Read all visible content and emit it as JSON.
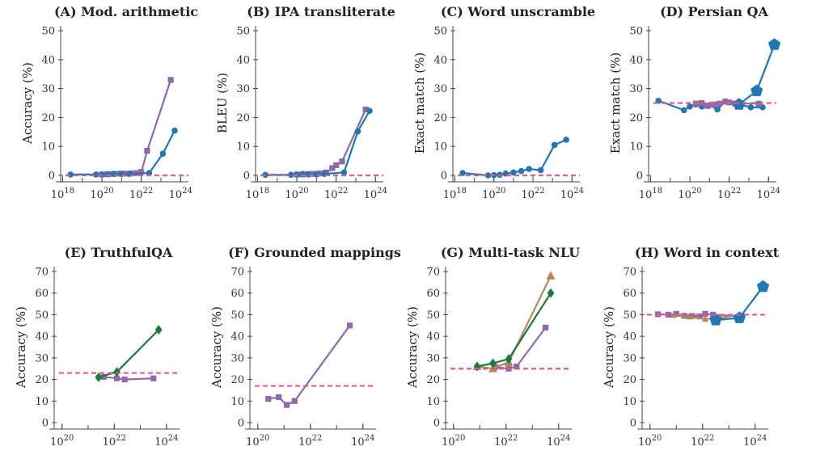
{
  "colors": {
    "blue": "#1f77b4",
    "purple": "#8e6aa8",
    "green": "#1a7a3f",
    "tan": "#b08a5a",
    "baseline": "#e05a8a"
  },
  "chart_data": [
    {
      "type": "line",
      "title": "(A) Mod. arithmetic",
      "ylabel": "Accuracy (%)",
      "xscale": "log",
      "xlim": [
        17.9,
        24.4
      ],
      "ylim": [
        0,
        50
      ],
      "xticks": [
        18,
        20,
        22,
        24
      ],
      "yticks": [
        0,
        10,
        20,
        30,
        40,
        50
      ],
      "baseline": 0,
      "series": [
        {
          "color": "purple",
          "marker": "square",
          "size": "small",
          "x": [
            20.0,
            20.3,
            20.6,
            20.9,
            21.2,
            21.5,
            21.8,
            22.0,
            22.3,
            23.5
          ],
          "y": [
            0.3,
            0.4,
            0.5,
            0.6,
            0.6,
            0.7,
            0.8,
            1.2,
            8.5,
            33.0
          ]
        },
        {
          "color": "blue",
          "marker": "circle",
          "size": "small",
          "x": [
            18.4,
            19.7,
            20.0,
            20.3,
            20.6,
            21.0,
            21.4,
            22.4,
            23.1,
            23.7
          ],
          "y": [
            0.3,
            0.3,
            0.3,
            0.4,
            0.5,
            0.5,
            0.5,
            0.8,
            7.5,
            15.5
          ]
        }
      ]
    },
    {
      "type": "line",
      "title": "(B) IPA transliterate",
      "ylabel": "BLEU (%)",
      "xscale": "log",
      "xlim": [
        17.9,
        24.4
      ],
      "ylim": [
        0,
        50
      ],
      "xticks": [
        18,
        20,
        22,
        24
      ],
      "yticks": [
        0,
        10,
        20,
        30,
        40,
        50
      ],
      "baseline": 0,
      "series": [
        {
          "color": "purple",
          "marker": "square",
          "size": "small",
          "x": [
            20.0,
            20.3,
            20.6,
            20.9,
            21.2,
            21.5,
            21.8,
            22.0,
            22.3,
            23.5
          ],
          "y": [
            0.3,
            0.3,
            0.5,
            0.5,
            0.7,
            1.0,
            2.5,
            3.5,
            4.8,
            22.8
          ]
        },
        {
          "color": "blue",
          "marker": "circle",
          "size": "small",
          "x": [
            18.4,
            19.7,
            20.0,
            20.3,
            20.6,
            21.0,
            21.4,
            22.4,
            23.1,
            23.7
          ],
          "y": [
            0.2,
            0.2,
            0.3,
            0.5,
            0.3,
            0.3,
            0.5,
            1.0,
            15.2,
            22.3
          ]
        }
      ]
    },
    {
      "type": "line",
      "title": "(C) Word unscramble",
      "ylabel": "Exact match (%)",
      "xscale": "log",
      "xlim": [
        17.9,
        24.4
      ],
      "ylim": [
        0,
        50
      ],
      "xticks": [
        18,
        20,
        22,
        24
      ],
      "yticks": [
        0,
        10,
        20,
        30,
        40,
        50
      ],
      "baseline": 0,
      "series": [
        {
          "color": "blue",
          "marker": "circle",
          "size": "small",
          "x": [
            18.4,
            19.7,
            20.0,
            20.3,
            20.6,
            21.0,
            21.4,
            21.8,
            22.4,
            23.1,
            23.7
          ],
          "y": [
            0.8,
            0.0,
            0.1,
            0.2,
            0.6,
            1.0,
            1.5,
            2.2,
            1.8,
            10.5,
            12.3
          ]
        }
      ]
    },
    {
      "type": "line",
      "title": "(D) Persian QA",
      "ylabel": "Exact match (%)",
      "xscale": "log",
      "xlim": [
        17.9,
        24.4
      ],
      "ylim": [
        0,
        50
      ],
      "xticks": [
        18,
        20,
        22,
        24
      ],
      "yticks": [
        0,
        10,
        20,
        30,
        40,
        50
      ],
      "baseline": 25,
      "series": [
        {
          "color": "blue",
          "marker": "circle",
          "size": "small",
          "x": [
            18.4,
            19.7,
            20.0,
            20.3,
            20.6,
            21.0,
            21.4,
            21.8,
            22.4,
            23.1,
            23.7
          ],
          "y": [
            25.8,
            22.5,
            23.8,
            24.5,
            23.8,
            24.3,
            22.8,
            25.5,
            24.8,
            23.5,
            23.5
          ]
        },
        {
          "color": "purple",
          "marker": "square",
          "size": "small",
          "x": [
            20.3,
            20.6,
            20.9,
            21.2,
            21.5,
            21.8,
            22.0,
            22.3,
            23.5
          ],
          "y": [
            24.8,
            25.0,
            24.0,
            24.5,
            24.8,
            25.5,
            25.2,
            24.8,
            24.8
          ]
        },
        {
          "color": "blue",
          "marker": "pentagon",
          "size": "large",
          "x": [
            22.5,
            23.4,
            24.3
          ],
          "y": [
            24.5,
            29.2,
            45.2
          ]
        }
      ]
    },
    {
      "type": "line",
      "title": "(E) TruthfulQA",
      "ylabel": "Accuracy (%)",
      "xscale": "log",
      "xlim": [
        19.7,
        24.5
      ],
      "ylim": [
        0,
        70
      ],
      "xticks": [
        20,
        22,
        24
      ],
      "yticks": [
        0,
        10,
        20,
        30,
        40,
        50,
        60,
        70
      ],
      "baseline": 23,
      "series": [
        {
          "color": "purple",
          "marker": "square",
          "size": "small",
          "x": [
            21.6,
            22.1,
            22.4,
            23.5
          ],
          "y": [
            21.2,
            20.5,
            20.0,
            20.5
          ]
        },
        {
          "color": "green",
          "marker": "diamond",
          "size": "medium",
          "x": [
            21.4,
            22.1,
            23.7
          ],
          "y": [
            21.0,
            23.5,
            43.0
          ]
        }
      ]
    },
    {
      "type": "line",
      "title": "(F) Grounded mappings",
      "ylabel": "Accuracy (%)",
      "xscale": "log",
      "xlim": [
        19.7,
        24.5
      ],
      "ylim": [
        0,
        70
      ],
      "xticks": [
        20,
        22,
        24
      ],
      "yticks": [
        0,
        10,
        20,
        30,
        40,
        50,
        60,
        70
      ],
      "baseline": 17,
      "series": [
        {
          "color": "purple",
          "marker": "square",
          "size": "small",
          "x": [
            20.4,
            20.8,
            21.1,
            21.4,
            23.5
          ],
          "y": [
            11.0,
            11.8,
            8.2,
            10.0,
            45.0
          ]
        }
      ]
    },
    {
      "type": "line",
      "title": "(G) Multi-task NLU",
      "ylabel": "Accuracy (%)",
      "xscale": "log",
      "xlim": [
        19.7,
        24.5
      ],
      "ylim": [
        0,
        70
      ],
      "xticks": [
        20,
        22,
        24
      ],
      "yticks": [
        0,
        10,
        20,
        30,
        40,
        50,
        60,
        70
      ],
      "baseline": 25,
      "series": [
        {
          "color": "purple",
          "marker": "square",
          "size": "small",
          "x": [
            21.6,
            22.1,
            22.4,
            23.5
          ],
          "y": [
            25.8,
            25.0,
            26.0,
            44.0
          ]
        },
        {
          "color": "tan",
          "marker": "triangle",
          "size": "medium",
          "x": [
            20.9,
            21.5,
            22.1,
            23.7
          ],
          "y": [
            26.0,
            25.0,
            28.0,
            68.0
          ]
        },
        {
          "color": "green",
          "marker": "diamond",
          "size": "medium",
          "x": [
            20.9,
            21.5,
            22.1,
            23.7
          ],
          "y": [
            26.0,
            27.5,
            29.5,
            60.0
          ]
        }
      ]
    },
    {
      "type": "line",
      "title": "(H) Word in context",
      "ylabel": "Accuracy (%)",
      "xscale": "log",
      "xlim": [
        19.7,
        24.5
      ],
      "ylim": [
        0,
        70
      ],
      "xticks": [
        20,
        22,
        24
      ],
      "yticks": [
        0,
        10,
        20,
        30,
        40,
        50,
        60,
        70
      ],
      "baseline": 50,
      "series": [
        {
          "color": "purple",
          "marker": "square",
          "size": "small",
          "x": [
            20.3,
            20.7,
            21.0,
            21.3,
            21.6,
            21.9,
            22.1,
            22.4,
            23.5
          ],
          "y": [
            50.2,
            50.0,
            50.4,
            49.5,
            49.4,
            49.2,
            50.4,
            50.0,
            49.2
          ]
        },
        {
          "color": "tan",
          "marker": "triangle",
          "size": "small",
          "x": [
            20.9,
            21.5,
            22.1,
            22.7,
            23.4
          ],
          "y": [
            49.7,
            49.0,
            48.0,
            48.5,
            50.0
          ]
        },
        {
          "color": "blue",
          "marker": "pentagon",
          "size": "large",
          "x": [
            22.5,
            23.4,
            24.3
          ],
          "y": [
            47.5,
            48.5,
            63.0
          ]
        }
      ]
    }
  ]
}
